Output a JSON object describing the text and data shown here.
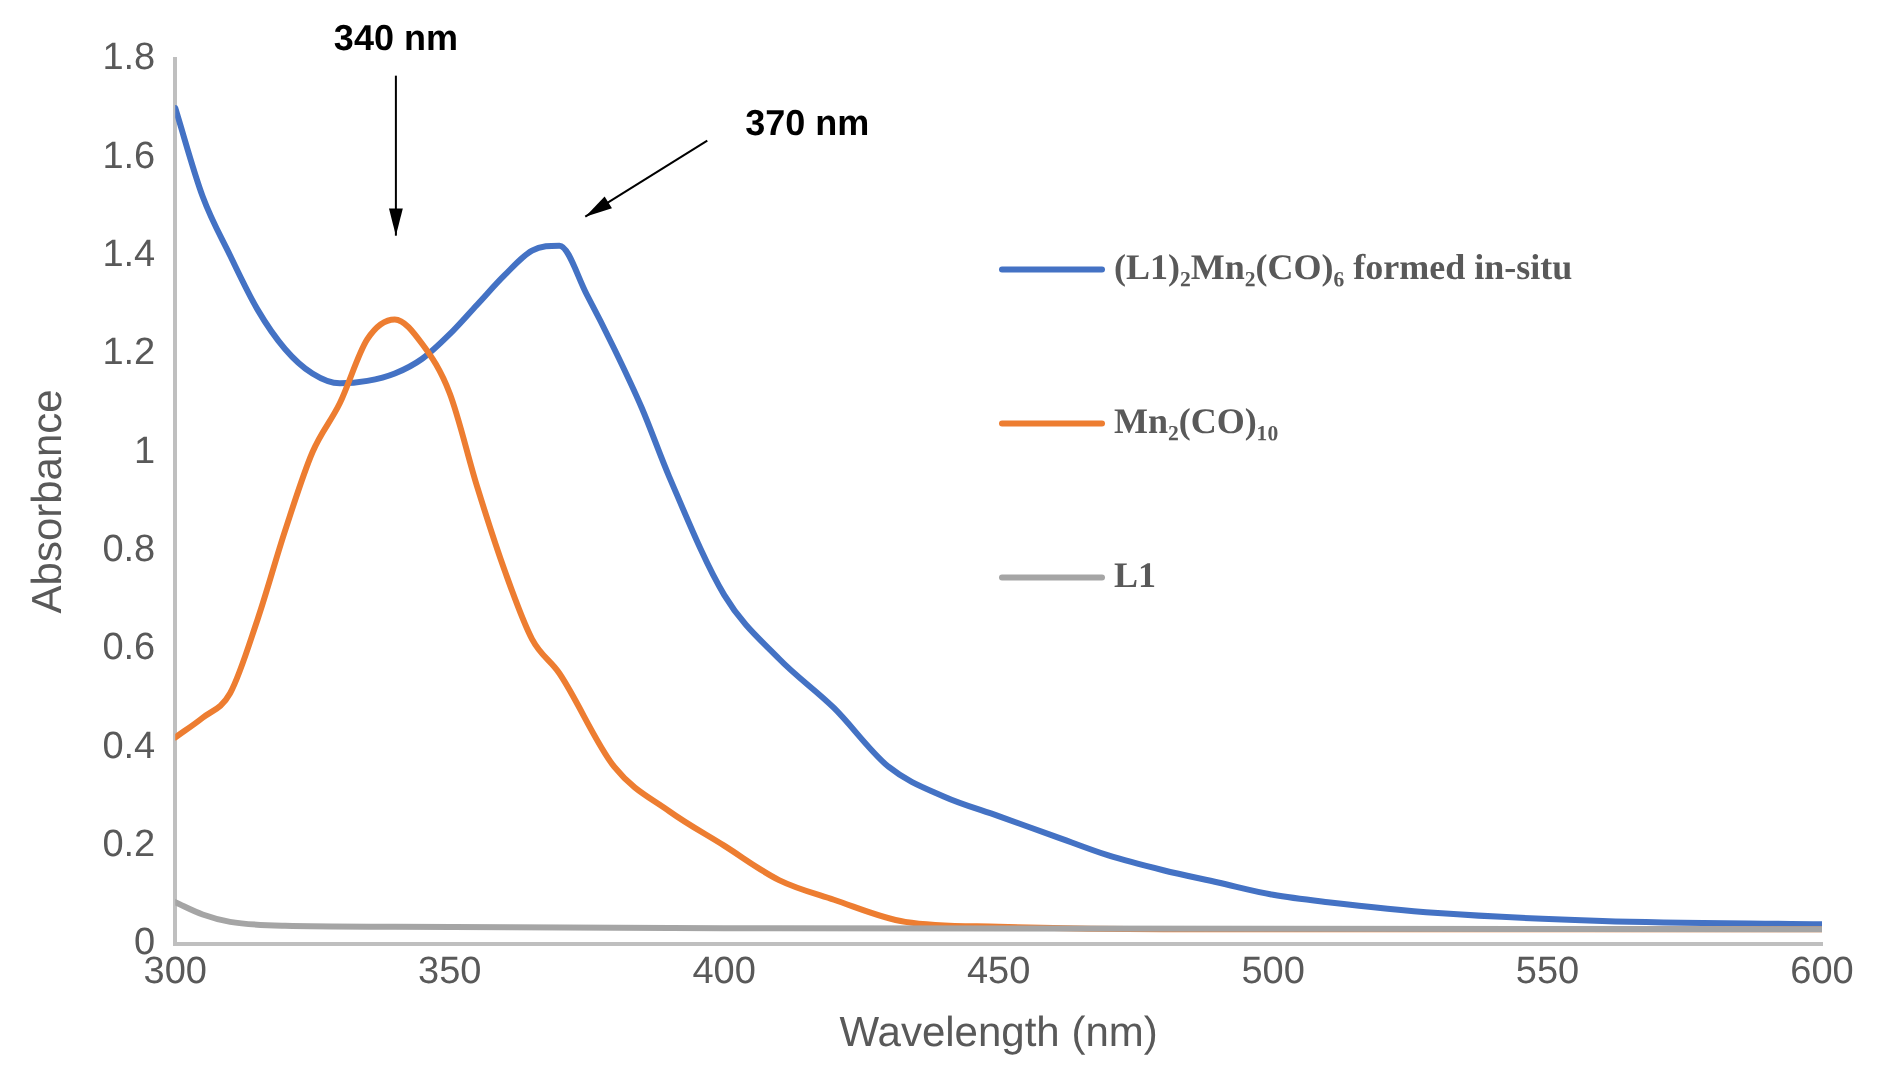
{
  "chart_data": {
    "type": "line",
    "xlabel": "Wavelength (nm)",
    "ylabel": "Absorbance",
    "xlim": [
      300,
      600
    ],
    "xticks": [
      300,
      350,
      400,
      450,
      500,
      550,
      600
    ],
    "ylim": [
      0,
      1.8
    ],
    "yticks": [
      0,
      0.2,
      0.4,
      0.6,
      0.8,
      1,
      1.2,
      1.4,
      1.6,
      1.8
    ],
    "grid": false,
    "legend": "right",
    "marker": "none",
    "line_style": "solid",
    "annotations": [
      "340 nm",
      "370 nm"
    ],
    "series": [
      {
        "name": "(L1)₂Mn₂(CO)₆ formed in-situ",
        "color": "#4472c4",
        "x": [
          300,
          305,
          310,
          315,
          320,
          325,
          330,
          335,
          340,
          345,
          350,
          355,
          360,
          365,
          370,
          375,
          380,
          385,
          390,
          400,
          410,
          420,
          430,
          440,
          450,
          460,
          470,
          480,
          490,
          500,
          510,
          530,
          560,
          600
        ],
        "values": [
          1.7,
          1.52,
          1.4,
          1.29,
          1.21,
          1.16,
          1.14,
          1.145,
          1.16,
          1.19,
          1.24,
          1.3,
          1.36,
          1.41,
          1.42,
          1.32,
          1.21,
          1.09,
          0.95,
          0.71,
          0.58,
          0.48,
          0.36,
          0.3,
          0.26,
          0.22,
          0.18,
          0.15,
          0.125,
          0.1,
          0.085,
          0.063,
          0.047,
          0.04
        ]
      },
      {
        "name": "Mn₂(CO)₁₀",
        "color": "#ed7d31",
        "x": [
          300,
          305,
          310,
          315,
          320,
          325,
          330,
          335,
          340,
          345,
          350,
          355,
          360,
          365,
          370,
          380,
          390,
          400,
          410,
          420,
          433,
          450,
          480,
          600
        ],
        "values": [
          0.42,
          0.46,
          0.51,
          0.66,
          0.84,
          1.0,
          1.1,
          1.23,
          1.27,
          1.22,
          1.12,
          0.93,
          0.76,
          0.62,
          0.55,
          0.36,
          0.27,
          0.2,
          0.13,
          0.09,
          0.045,
          0.035,
          0.03,
          0.03
        ]
      },
      {
        "name": "L1",
        "color": "#a5a5a5",
        "x": [
          300,
          305,
          310,
          320,
          340,
          400,
          600
        ],
        "values": [
          0.085,
          0.06,
          0.045,
          0.037,
          0.035,
          0.032,
          0.03
        ]
      }
    ]
  }
}
